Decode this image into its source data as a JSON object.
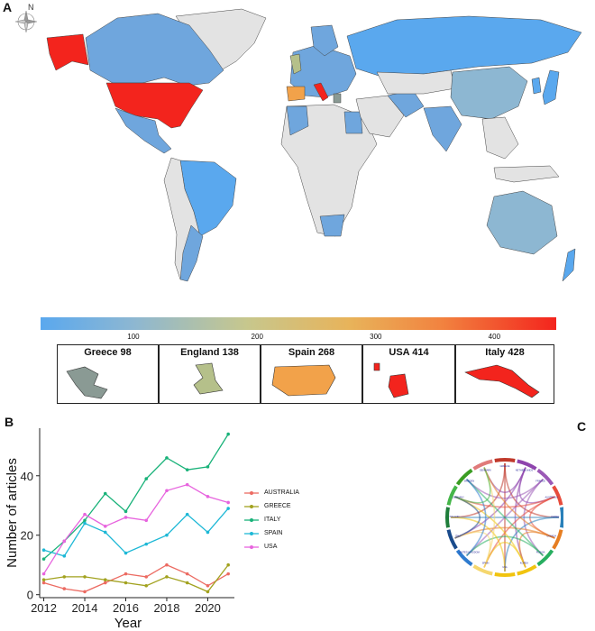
{
  "panels": {
    "a": "A",
    "b": "B",
    "c": "C"
  },
  "compass": {
    "label": "N",
    "icon": "compass-rose-icon"
  },
  "map": {
    "colorbar_ticks": [
      {
        "value": 100,
        "label": "100",
        "pos": 0.18
      },
      {
        "value": 200,
        "label": "200",
        "pos": 0.42
      },
      {
        "value": 300,
        "label": "300",
        "pos": 0.65
      },
      {
        "value": 400,
        "label": "400",
        "pos": 0.88
      }
    ],
    "insets": [
      {
        "title": "Greece 98",
        "color": "#8a9a94"
      },
      {
        "title": "England 138",
        "color": "#b5c08a"
      },
      {
        "title": "Spain 268",
        "color": "#f2a24a"
      },
      {
        "title": "USA 414",
        "color": "#f3241d"
      },
      {
        "title": "Italy 428",
        "color": "#f3241d"
      }
    ],
    "colors": {
      "low": "#5aa8ee",
      "mid": "#8db7d2",
      "high": "#f3241d",
      "none": "#e3e3e3",
      "ocean": "#ffffff"
    }
  },
  "chart_data": [
    {
      "type": "line",
      "xlabel": "Year",
      "ylabel": "Number of articles",
      "xlim": [
        2011.8,
        2021.3
      ],
      "ylim": [
        -1,
        56
      ],
      "xticks": [
        2012,
        2014,
        2016,
        2018,
        2020
      ],
      "yticks": [
        0,
        20,
        40
      ],
      "x": [
        2012,
        2013,
        2014,
        2015,
        2016,
        2017,
        2018,
        2019,
        2020,
        2021
      ],
      "series": [
        {
          "name": "AUSTRALIA",
          "color": "#ec6b62",
          "values": [
            4,
            2,
            1,
            4,
            7,
            6,
            10,
            7,
            3,
            7
          ]
        },
        {
          "name": "GREECE",
          "color": "#a2a21f",
          "values": [
            5,
            6,
            6,
            5,
            4,
            3,
            6,
            4,
            1,
            10
          ]
        },
        {
          "name": "ITALY",
          "color": "#19b279",
          "values": [
            12,
            18,
            25,
            34,
            28,
            39,
            46,
            42,
            43,
            54
          ]
        },
        {
          "name": "SPAIN",
          "color": "#1eb8d6",
          "values": [
            15,
            13,
            24,
            21,
            14,
            17,
            20,
            27,
            21,
            29
          ]
        },
        {
          "name": "USA",
          "color": "#e764de",
          "values": [
            7,
            18,
            27,
            23,
            26,
            25,
            35,
            37,
            33,
            31
          ]
        }
      ]
    },
    {
      "type": "chord",
      "labels": [
        "GREECE",
        "NETHERLANDS",
        "FRANCE",
        "AUSTRALIA",
        "ISRAEL",
        "CANADA",
        "RUSSIA",
        "KOREA",
        "USA",
        "SPAIN",
        "UNITED KINGDOM",
        "ITALY",
        "POLAND",
        "GERMANY",
        "SWEDEN",
        "DENMARK"
      ],
      "colors": [
        "#c0392b",
        "#8e44ad",
        "#9b59b6",
        "#e74c3c",
        "#2980b9",
        "#e67e22",
        "#27ae60",
        "#f1c40f",
        "#f1c40f",
        "#f5d76e",
        "#2e7bcf",
        "#1a4b8c",
        "#1e7d3a",
        "#45b649",
        "#3a9d23",
        "#e07a7a"
      ]
    }
  ]
}
